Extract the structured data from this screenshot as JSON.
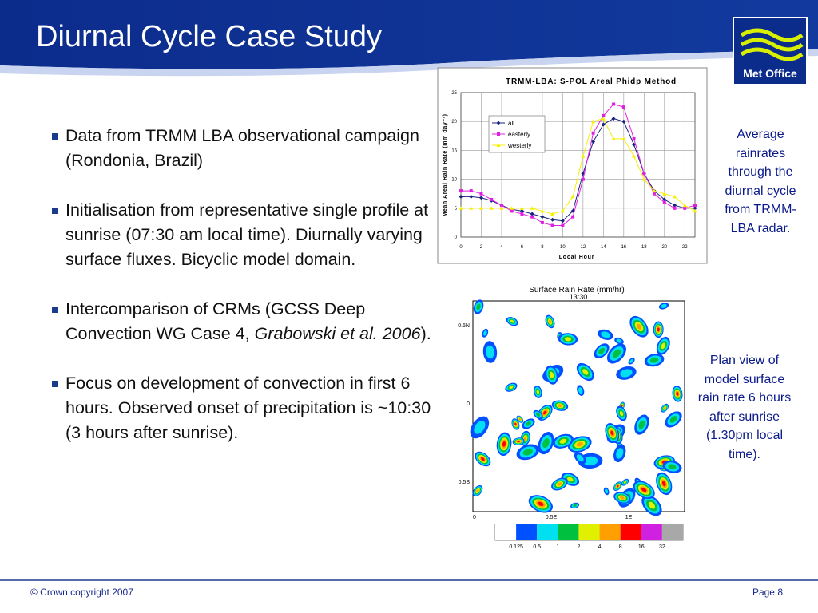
{
  "header": {
    "title": "Diurnal Cycle Case Study",
    "logo": "Met Office"
  },
  "bullets": [
    {
      "text": [
        "Data from TRMM LBA observational campaign (Rondonia, Brazil)"
      ]
    },
    {
      "text": [
        "Initialisation from representative single profile at sunrise (07:30 am local time). Diurnally varying surface fluxes. Bicyclic model domain."
      ]
    },
    {
      "text": [
        "Intercomparison of CRMs (GCSS Deep Convection WG Case 4, ",
        "Grabowski et al. 2006",
        ")."
      ],
      "italic": [
        1
      ]
    },
    {
      "text": [
        "Focus on development of convection in first 6 hours. Observed onset of precipitation is ~10:30 (3 hours after sunrise)."
      ]
    }
  ],
  "chart_data": {
    "type": "line",
    "title": "TRMM-LBA: S-POL Areal Phidp Method",
    "x_label": "Local Hour",
    "y_label": "Mean Areal Rain Rate (mm day⁻¹)",
    "x": [
      0,
      1,
      2,
      3,
      4,
      5,
      6,
      7,
      8,
      9,
      10,
      11,
      12,
      13,
      14,
      15,
      16,
      17,
      18,
      19,
      20,
      21,
      22,
      23
    ],
    "series": [
      {
        "name": "all",
        "color": "#1a237e",
        "marker": "diamond",
        "values": [
          7,
          7,
          6.8,
          6.3,
          5.5,
          4.8,
          4.5,
          4,
          3.5,
          3,
          2.8,
          4.5,
          11,
          16.5,
          19.5,
          20.5,
          20,
          16,
          11,
          8,
          6.5,
          5.5,
          5,
          5
        ]
      },
      {
        "name": "easterly",
        "color": "#e020e0",
        "marker": "square",
        "values": [
          8,
          8,
          7.5,
          6.5,
          5.5,
          4.5,
          4,
          3.5,
          2.5,
          2,
          2,
          3.5,
          10,
          18,
          21,
          23,
          22.5,
          17,
          11,
          7.5,
          6,
          5,
          5,
          5.5
        ]
      },
      {
        "name": "westerly",
        "color": "#f5f000",
        "marker": "triangle",
        "values": [
          5,
          5,
          5,
          5,
          5,
          5,
          5,
          5,
          4.5,
          4,
          4.5,
          7,
          14,
          20,
          20.5,
          17,
          17,
          14,
          10,
          8,
          7.5,
          7,
          5.5,
          4.5
        ]
      }
    ],
    "xlim": [
      0,
      23
    ],
    "ylim": [
      0,
      25
    ],
    "xticks": [
      0,
      2,
      4,
      6,
      8,
      10,
      12,
      14,
      16,
      18,
      20,
      22
    ],
    "yticks": [
      0,
      5,
      10,
      15,
      20,
      25
    ],
    "grid": true,
    "legend": "upper left"
  },
  "chart_caption": "Average rainrates through the diurnal cycle from TRMM-LBA radar.",
  "plan_view": {
    "title": "Surface Rain Rate (mm/hr)",
    "time": "13:30",
    "y_labels": [
      "0.5N",
      "0",
      "0.5S"
    ],
    "x_labels": [
      "0",
      "0.5E",
      "1E"
    ],
    "colorbar": {
      "colors": [
        "#ffffff",
        "#0050ff",
        "#00e0f0",
        "#00c040",
        "#e0f000",
        "#ffa000",
        "#ff0000",
        "#d020e0",
        "#a8a8a8"
      ],
      "labels": [
        0.125,
        0.5,
        1,
        2,
        4,
        8,
        16,
        32
      ]
    }
  },
  "plan_caption": "Plan view of model surface rain rate 6 hours after sunrise (1.30pm local time).",
  "footer": {
    "copyright": "© Crown copyright 2007",
    "page": "Page 8"
  }
}
